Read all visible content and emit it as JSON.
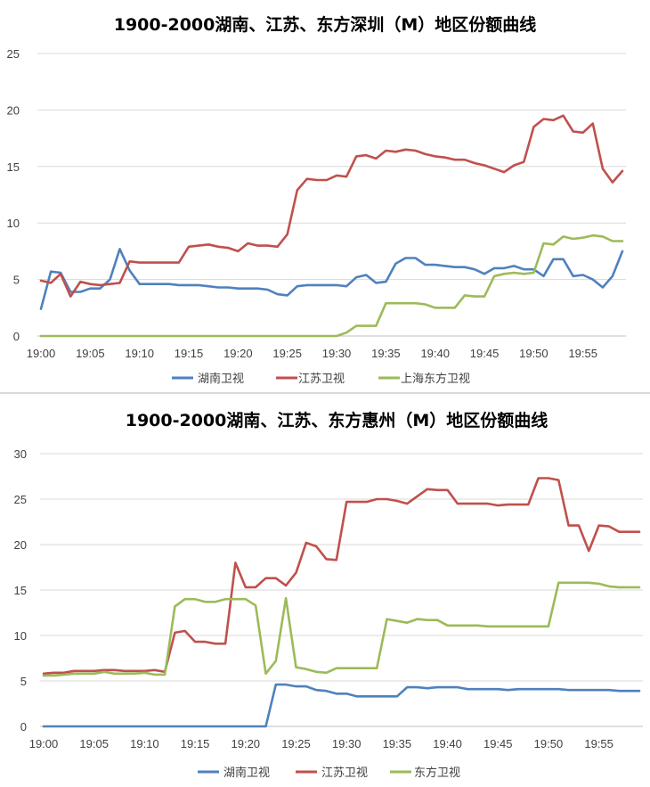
{
  "chart_data": [
    {
      "type": "line",
      "title": "1900-2000湖南、江苏、东方深圳（M）地区份额曲线",
      "xlabel": "",
      "ylabel": "",
      "ylim": [
        0,
        25
      ],
      "yticks": [
        0,
        5,
        10,
        15,
        20,
        25
      ],
      "xticks": [
        "19:00",
        "19:05",
        "19:10",
        "19:15",
        "19:20",
        "19:25",
        "19:30",
        "19:35",
        "19:40",
        "19:45",
        "19:50",
        "19:55"
      ],
      "grid": "horizontal",
      "legend_position": "bottom",
      "x": [
        "19:00",
        "19:01",
        "19:02",
        "19:03",
        "19:04",
        "19:05",
        "19:06",
        "19:07",
        "19:08",
        "19:09",
        "19:10",
        "19:11",
        "19:12",
        "19:13",
        "19:14",
        "19:15",
        "19:16",
        "19:17",
        "19:18",
        "19:19",
        "19:20",
        "19:21",
        "19:22",
        "19:23",
        "19:24",
        "19:25",
        "19:26",
        "19:27",
        "19:28",
        "19:29",
        "19:30",
        "19:31",
        "19:32",
        "19:33",
        "19:34",
        "19:35",
        "19:36",
        "19:37",
        "19:38",
        "19:39",
        "19:40",
        "19:41",
        "19:42",
        "19:43",
        "19:44",
        "19:45",
        "19:46",
        "19:47",
        "19:48",
        "19:49",
        "19:50",
        "19:51",
        "19:52",
        "19:53",
        "19:54",
        "19:55",
        "19:56",
        "19:57",
        "19:58",
        "19:59"
      ],
      "series": [
        {
          "name": "湖南卫视",
          "color": "#4f81bd",
          "values": [
            2.4,
            5.7,
            5.6,
            3.9,
            3.9,
            4.2,
            4.2,
            5.0,
            7.7,
            5.8,
            4.6,
            4.6,
            4.6,
            4.6,
            4.5,
            4.5,
            4.5,
            4.4,
            4.3,
            4.3,
            4.2,
            4.2,
            4.2,
            4.1,
            3.7,
            3.6,
            4.4,
            4.5,
            4.5,
            4.5,
            4.5,
            4.4,
            5.2,
            5.4,
            4.7,
            4.8,
            6.4,
            6.9,
            6.9,
            6.3,
            6.3,
            6.2,
            6.1,
            6.1,
            5.9,
            5.5,
            6.0,
            6.0,
            6.2,
            5.9,
            5.9,
            5.3,
            6.8,
            6.8,
            5.3,
            5.4,
            5.0,
            4.3,
            5.3,
            7.5
          ]
        },
        {
          "name": "江苏卫视",
          "color": "#c0504d",
          "values": [
            4.9,
            4.7,
            5.5,
            3.5,
            4.8,
            4.6,
            4.5,
            4.6,
            4.7,
            6.6,
            6.5,
            6.5,
            6.5,
            6.5,
            6.5,
            7.9,
            8.0,
            8.1,
            7.9,
            7.8,
            7.5,
            8.2,
            8.0,
            8.0,
            7.9,
            9.0,
            12.9,
            13.9,
            13.8,
            13.8,
            14.2,
            14.1,
            15.9,
            16.0,
            15.7,
            16.4,
            16.3,
            16.5,
            16.4,
            16.1,
            15.9,
            15.8,
            15.6,
            15.6,
            15.3,
            15.1,
            14.8,
            14.5,
            15.1,
            15.4,
            18.5,
            19.2,
            19.1,
            19.5,
            18.1,
            18.0,
            18.8,
            14.8,
            13.6,
            14.6
          ]
        },
        {
          "name": "上海东方卫视",
          "color": "#9bbb59",
          "values": [
            0,
            0,
            0,
            0,
            0,
            0,
            0,
            0,
            0,
            0,
            0,
            0,
            0,
            0,
            0,
            0,
            0,
            0,
            0,
            0,
            0,
            0,
            0,
            0,
            0,
            0,
            0,
            0,
            0,
            0,
            0,
            0.3,
            0.9,
            0.9,
            0.9,
            2.9,
            2.9,
            2.9,
            2.9,
            2.8,
            2.5,
            2.5,
            2.5,
            3.6,
            3.5,
            3.5,
            5.3,
            5.5,
            5.6,
            5.5,
            5.6,
            8.2,
            8.1,
            8.8,
            8.6,
            8.7,
            8.9,
            8.8,
            8.4,
            8.4
          ]
        }
      ]
    },
    {
      "type": "line",
      "title": "1900-2000湖南、江苏、东方惠州（M）地区份额曲线",
      "xlabel": "",
      "ylabel": "",
      "ylim": [
        0,
        30
      ],
      "yticks": [
        0,
        5,
        10,
        15,
        20,
        25,
        30
      ],
      "xticks": [
        "19:00",
        "19:05",
        "19:10",
        "19:15",
        "19:20",
        "19:25",
        "19:30",
        "19:35",
        "19:40",
        "19:45",
        "19:50",
        "19:55"
      ],
      "grid": "horizontal",
      "legend_position": "bottom",
      "x": [
        "19:00",
        "19:01",
        "19:02",
        "19:03",
        "19:04",
        "19:05",
        "19:06",
        "19:07",
        "19:08",
        "19:09",
        "19:10",
        "19:11",
        "19:12",
        "19:13",
        "19:14",
        "19:15",
        "19:16",
        "19:17",
        "19:18",
        "19:19",
        "19:20",
        "19:21",
        "19:22",
        "19:23",
        "19:24",
        "19:25",
        "19:26",
        "19:27",
        "19:28",
        "19:29",
        "19:30",
        "19:31",
        "19:32",
        "19:33",
        "19:34",
        "19:35",
        "19:36",
        "19:37",
        "19:38",
        "19:39",
        "19:40",
        "19:41",
        "19:42",
        "19:43",
        "19:44",
        "19:45",
        "19:46",
        "19:47",
        "19:48",
        "19:49",
        "19:50",
        "19:51",
        "19:52",
        "19:53",
        "19:54",
        "19:55",
        "19:56",
        "19:57",
        "19:58",
        "19:59"
      ],
      "series": [
        {
          "name": "湖南卫视",
          "color": "#4f81bd",
          "values": [
            0,
            0,
            0,
            0,
            0,
            0,
            0,
            0,
            0,
            0,
            0,
            0,
            0,
            0,
            0,
            0,
            0,
            0,
            0,
            0,
            0,
            0,
            0,
            4.6,
            4.6,
            4.4,
            4.4,
            4.0,
            3.9,
            3.6,
            3.6,
            3.3,
            3.3,
            3.3,
            3.3,
            3.3,
            4.3,
            4.3,
            4.2,
            4.3,
            4.3,
            4.3,
            4.1,
            4.1,
            4.1,
            4.1,
            4.0,
            4.1,
            4.1,
            4.1,
            4.1,
            4.1,
            4.0,
            4.0,
            4.0,
            4.0,
            4.0,
            3.9,
            3.9,
            3.9
          ]
        },
        {
          "name": "江苏卫视",
          "color": "#c0504d",
          "values": [
            5.8,
            5.9,
            5.9,
            6.1,
            6.1,
            6.1,
            6.2,
            6.2,
            6.1,
            6.1,
            6.1,
            6.2,
            6.0,
            10.3,
            10.5,
            9.3,
            9.3,
            9.1,
            9.1,
            18.0,
            15.3,
            15.3,
            16.3,
            16.3,
            15.5,
            16.9,
            20.2,
            19.8,
            18.4,
            18.3,
            24.7,
            24.7,
            24.7,
            25.0,
            25.0,
            24.8,
            24.5,
            25.3,
            26.1,
            26.0,
            26.0,
            24.5,
            24.5,
            24.5,
            24.5,
            24.3,
            24.4,
            24.4,
            24.4,
            27.3,
            27.3,
            27.1,
            22.1,
            22.1,
            19.3,
            22.1,
            22.0,
            21.4,
            21.4,
            21.4
          ]
        },
        {
          "name": "东方卫视",
          "color": "#9bbb59",
          "values": [
            5.6,
            5.6,
            5.7,
            5.8,
            5.8,
            5.8,
            6.0,
            5.8,
            5.8,
            5.8,
            5.9,
            5.7,
            5.7,
            13.2,
            14.0,
            14.0,
            13.7,
            13.7,
            14.0,
            14.0,
            14.0,
            13.3,
            5.8,
            7.2,
            14.1,
            6.5,
            6.3,
            6.0,
            5.9,
            6.4,
            6.4,
            6.4,
            6.4,
            6.4,
            11.8,
            11.6,
            11.4,
            11.8,
            11.7,
            11.7,
            11.1,
            11.1,
            11.1,
            11.1,
            11.0,
            11.0,
            11.0,
            11.0,
            11.0,
            11.0,
            11.0,
            15.8,
            15.8,
            15.8,
            15.8,
            15.7,
            15.4,
            15.3,
            15.3,
            15.3
          ]
        }
      ]
    }
  ]
}
